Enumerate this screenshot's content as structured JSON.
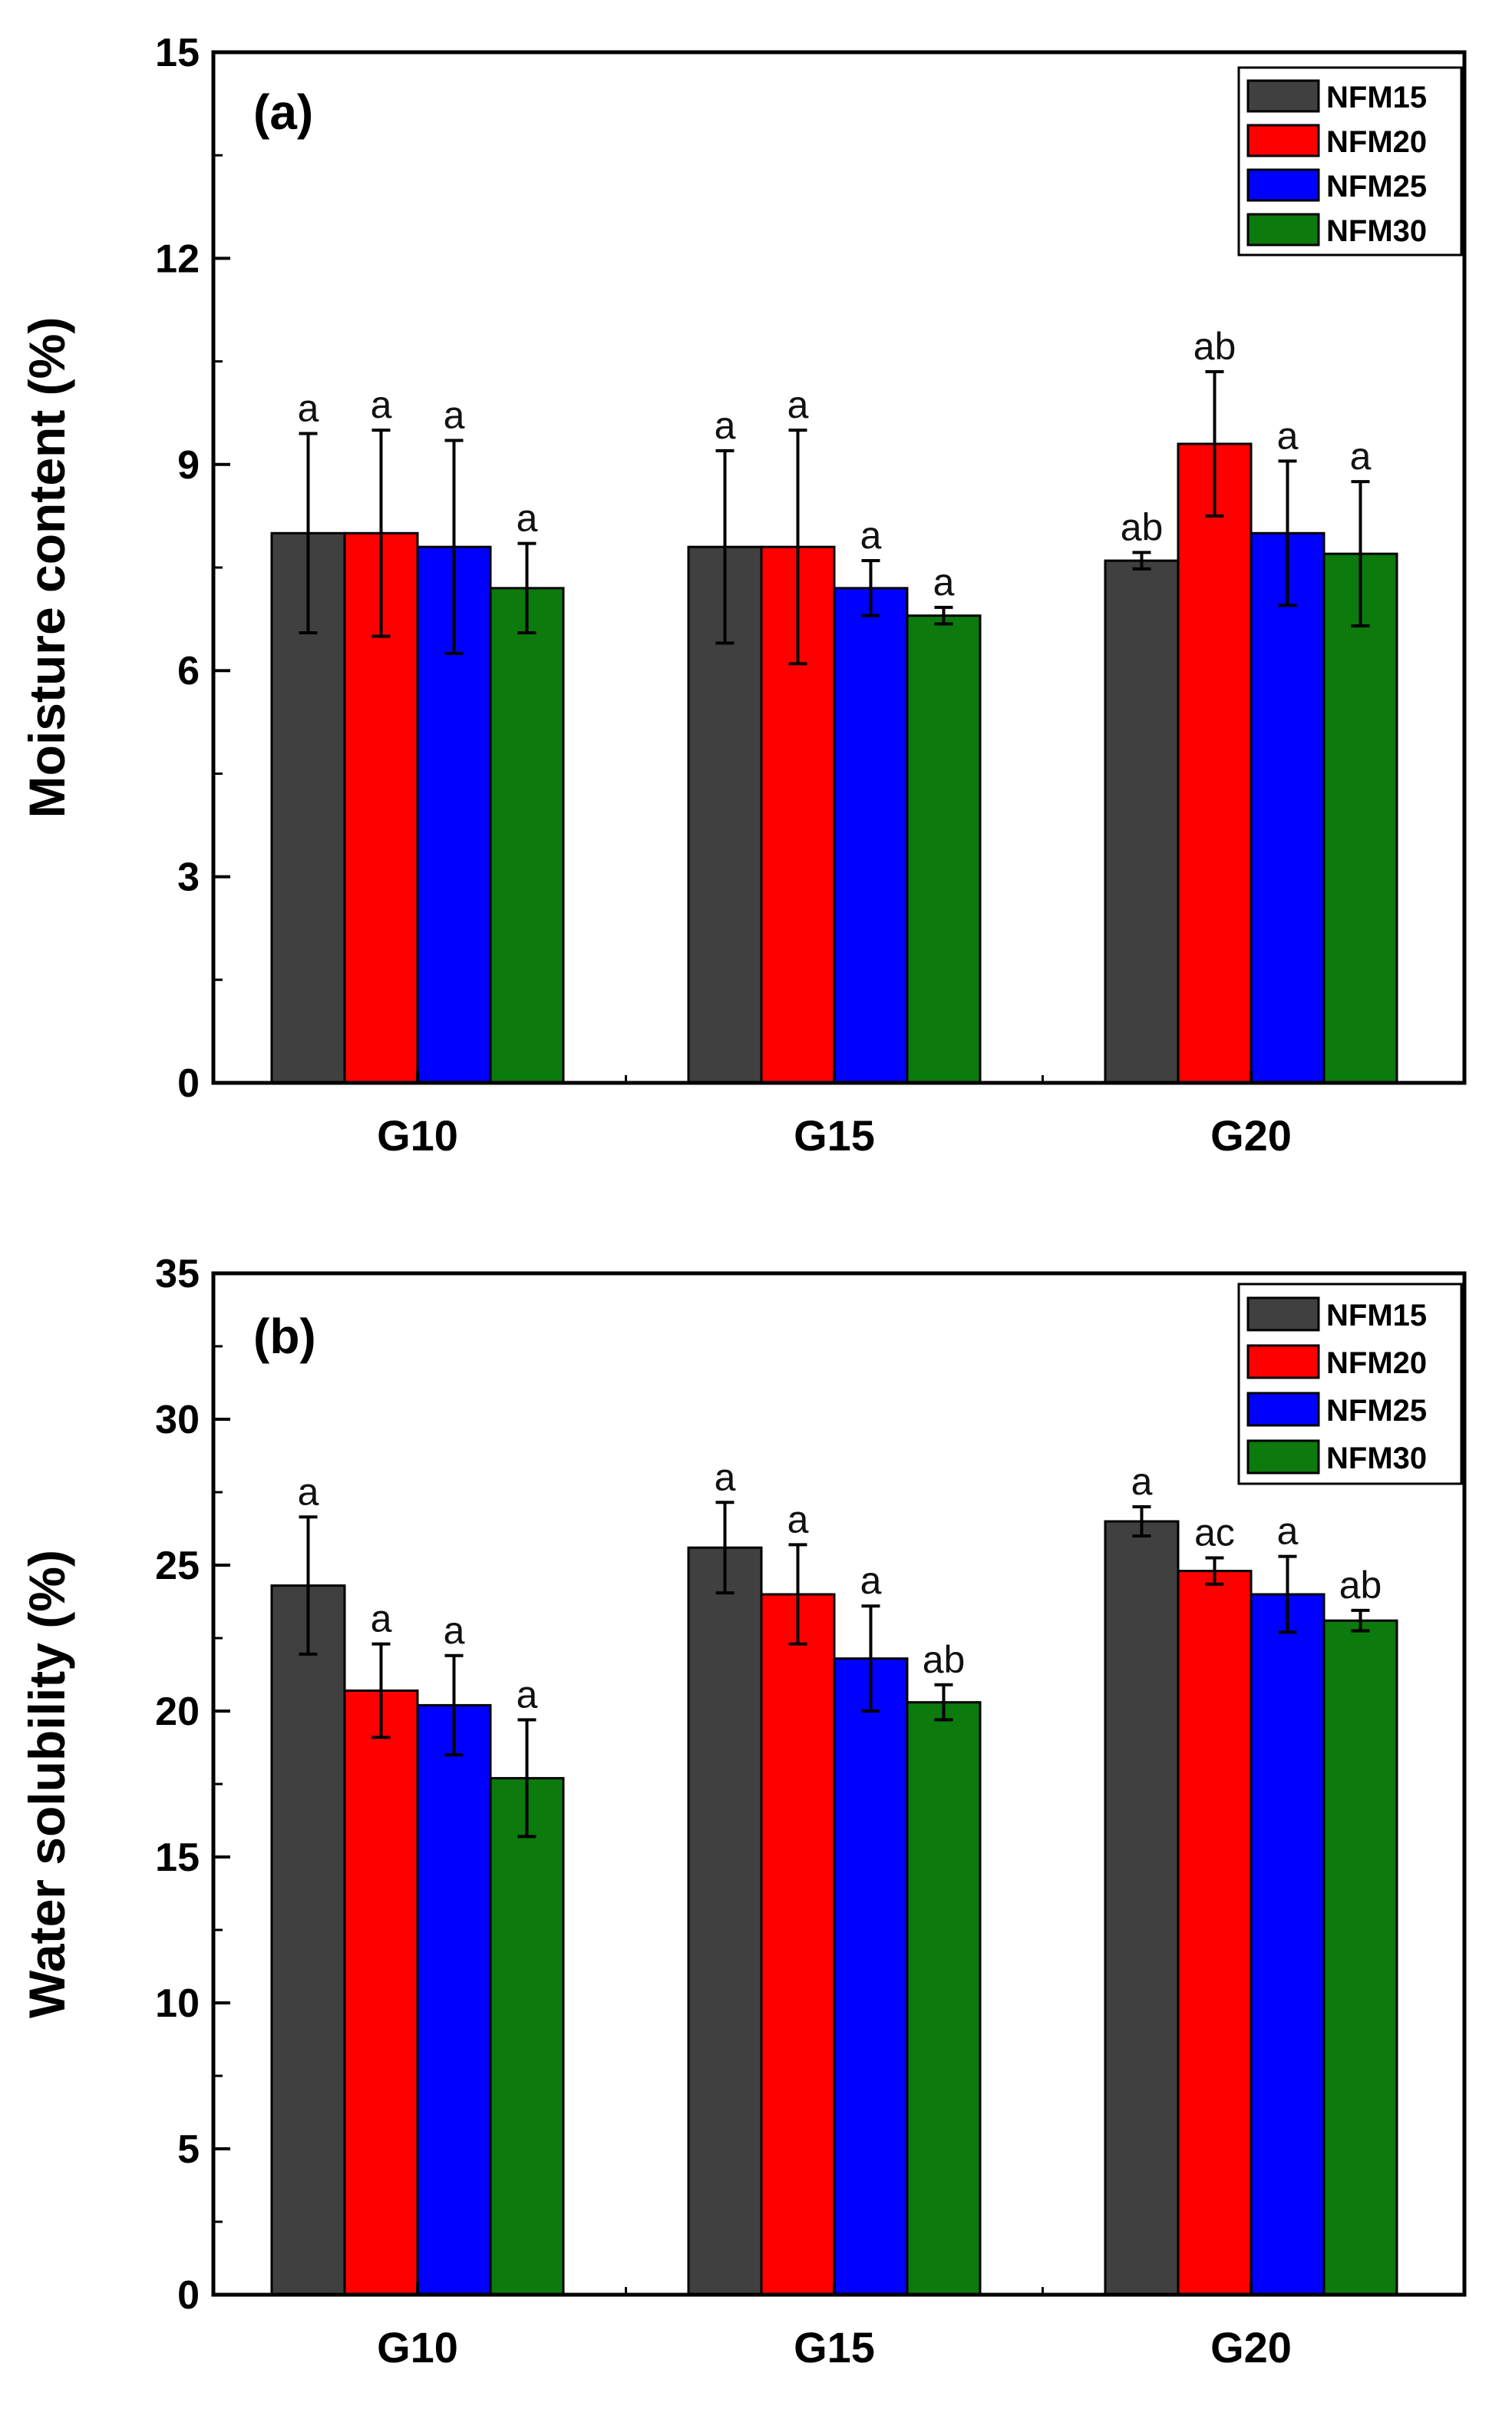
{
  "colors": {
    "NFM15": "#404040",
    "NFM20": "#ff0000",
    "NFM25": "#0000ff",
    "NFM30": "#0c7a0c",
    "axis": "#000000"
  },
  "chart_data": [
    {
      "type": "bar",
      "panel_label": "(a)",
      "title": "",
      "xlabel": "",
      "ylabel": "Moisture content (%)",
      "ylim": [
        0,
        15
      ],
      "yticks": [
        0,
        3,
        6,
        9,
        12,
        15
      ],
      "categories": [
        "G10",
        "G15",
        "G20"
      ],
      "legend": {
        "position": "top-right",
        "entries": [
          "NFM15",
          "NFM20",
          "NFM25",
          "NFM30"
        ]
      },
      "series": [
        {
          "name": "NFM15",
          "values": [
            8.0,
            7.8,
            7.6
          ],
          "errors": [
            1.45,
            1.4,
            0.12
          ],
          "letters": [
            "a",
            "a",
            "ab"
          ]
        },
        {
          "name": "NFM20",
          "values": [
            8.0,
            7.8,
            9.3
          ],
          "errors": [
            1.5,
            1.7,
            1.05
          ],
          "letters": [
            "a",
            "a",
            "ab"
          ]
        },
        {
          "name": "NFM25",
          "values": [
            7.8,
            7.2,
            8.0
          ],
          "errors": [
            1.55,
            0.4,
            1.05
          ],
          "letters": [
            "a",
            "a",
            "a"
          ]
        },
        {
          "name": "NFM30",
          "values": [
            7.2,
            6.8,
            7.7
          ],
          "errors": [
            0.65,
            0.12,
            1.05
          ],
          "letters": [
            "a",
            "a",
            "a"
          ]
        }
      ]
    },
    {
      "type": "bar",
      "panel_label": "(b)",
      "title": "",
      "xlabel": "",
      "ylabel": "Water solubility (%)",
      "ylim": [
        0,
        35
      ],
      "yticks": [
        0,
        5,
        10,
        15,
        20,
        25,
        30,
        35
      ],
      "categories": [
        "G10",
        "G15",
        "G20"
      ],
      "legend": {
        "position": "top-right",
        "entries": [
          "NFM15",
          "NFM20",
          "NFM25",
          "NFM30"
        ]
      },
      "series": [
        {
          "name": "NFM15",
          "values": [
            24.3,
            25.6,
            26.5
          ],
          "errors": [
            2.35,
            1.55,
            0.5
          ],
          "letters": [
            "a",
            "a",
            "a"
          ]
        },
        {
          "name": "NFM20",
          "values": [
            20.7,
            24.0,
            24.8
          ],
          "errors": [
            1.6,
            1.7,
            0.45
          ],
          "letters": [
            "a",
            "a",
            "ac"
          ]
        },
        {
          "name": "NFM25",
          "values": [
            20.2,
            21.8,
            24.0
          ],
          "errors": [
            1.7,
            1.8,
            1.3
          ],
          "letters": [
            "a",
            "a",
            "a"
          ]
        },
        {
          "name": "NFM30",
          "values": [
            17.7,
            20.3,
            23.1
          ],
          "errors": [
            2.0,
            0.6,
            0.35
          ],
          "letters": [
            "a",
            "ab",
            "ab"
          ]
        }
      ]
    }
  ]
}
